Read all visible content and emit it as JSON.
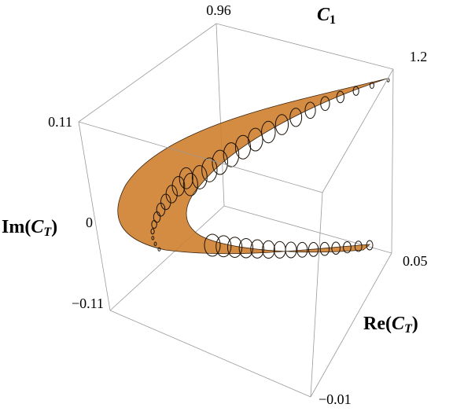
{
  "chart_data": {
    "type": "surface3d",
    "xlabel": {
      "main": "C",
      "sub": "1"
    },
    "ylabel": {
      "prefix": "Re(",
      "main": "C",
      "sub": "T",
      "suffix": ")"
    },
    "zlabel": {
      "prefix": "Im(",
      "main": "C",
      "sub": "T",
      "suffix": ")"
    },
    "xlim": [
      0.96,
      1.2
    ],
    "xticks": [
      0.96,
      1.2
    ],
    "ylim": [
      {
        "value": -0.01,
        "label": "−0.01"
      },
      0.05
    ],
    "yticks": [
      {
        "value": -0.01,
        "label": "−0.01"
      },
      0.05
    ],
    "zlim": [
      {
        "value": -0.11,
        "label": "−0.11"
      },
      0.11
    ],
    "zticks": [
      {
        "value": -0.11,
        "label": "−0.11"
      },
      0,
      0.11
    ],
    "color": "#cf7f2e"
  }
}
